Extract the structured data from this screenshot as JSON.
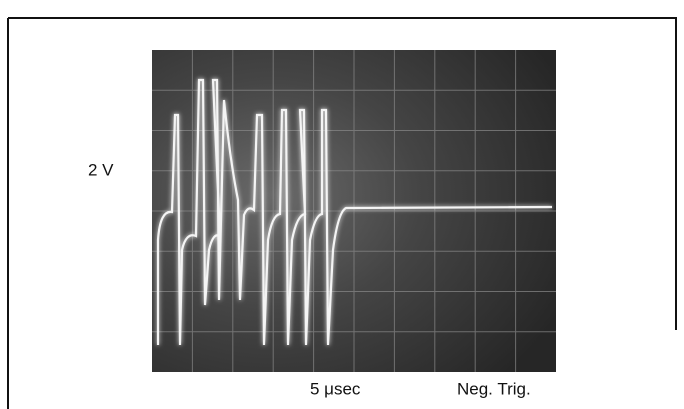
{
  "labels": {
    "vertical_scale": "2 V",
    "time_scale": "5 μsec",
    "trigger": "Neg. Trig."
  }
}
